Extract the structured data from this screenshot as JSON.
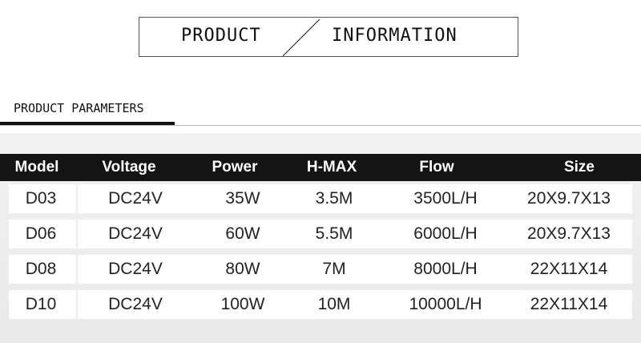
{
  "header": {
    "left_word": "PRODUCT",
    "right_word": "INFORMATION"
  },
  "section": {
    "label": "PRODUCT PARAMETERS"
  },
  "table": {
    "columns": [
      "Model",
      "Voltage",
      "Power",
      "H-MAX",
      "Flow",
      "Size"
    ],
    "rows": [
      [
        "D03",
        "DC24V",
        "35W",
        "3.5M",
        "3500L/H",
        "20X9.7X13"
      ],
      [
        "D06",
        "DC24V",
        "60W",
        "5.5M",
        "6000L/H",
        "20X9.7X13"
      ],
      [
        "D08",
        "DC24V",
        "80W",
        "7M",
        "8000L/H",
        "22X11X14"
      ],
      [
        "D10",
        "DC24V",
        "100W",
        "10M",
        "10000L/H",
        "22X11X14"
      ]
    ]
  }
}
